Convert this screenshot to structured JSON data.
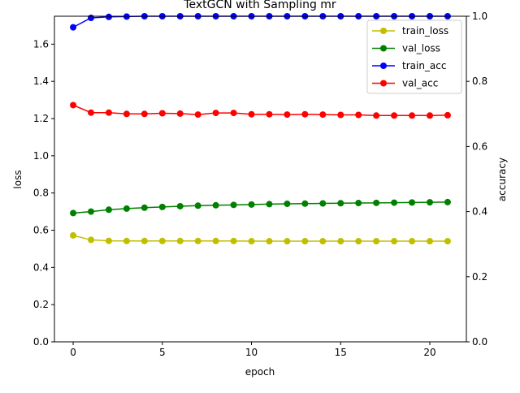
{
  "chart_data": {
    "type": "line",
    "title": "TextGCN with Sampling mr",
    "xlabel": "epoch",
    "ylabel_left": "loss",
    "ylabel_right": "accuracy",
    "xlim": [
      -1.05,
      22.05
    ],
    "ylim_left": [
      0,
      1.75
    ],
    "ylim_right": [
      0,
      1.0
    ],
    "x_ticks": [
      0,
      5,
      10,
      15,
      20
    ],
    "y_ticks_left": [
      "0.0",
      "0.2",
      "0.4",
      "0.6",
      "0.8",
      "1.0",
      "1.2",
      "1.4",
      "1.6"
    ],
    "y_ticks_right": [
      "0.0",
      "0.2",
      "0.4",
      "0.6",
      "0.8",
      "1.0"
    ],
    "grid": false,
    "legend_position": "top-right",
    "x": [
      0,
      1,
      2,
      3,
      4,
      5,
      6,
      7,
      8,
      9,
      10,
      11,
      12,
      13,
      14,
      15,
      16,
      17,
      18,
      19,
      20,
      21
    ],
    "series": [
      {
        "name": "train_loss",
        "axis": "left",
        "color": "#bfbf00",
        "values": [
          0.572,
          0.548,
          0.543,
          0.542,
          0.542,
          0.542,
          0.542,
          0.542,
          0.542,
          0.542,
          0.541,
          0.541,
          0.541,
          0.541,
          0.541,
          0.541,
          0.541,
          0.541,
          0.541,
          0.541,
          0.541,
          0.541
        ]
      },
      {
        "name": "val_loss",
        "axis": "left",
        "color": "#008000",
        "values": [
          0.692,
          0.7,
          0.71,
          0.716,
          0.721,
          0.725,
          0.729,
          0.732,
          0.734,
          0.736,
          0.738,
          0.74,
          0.742,
          0.743,
          0.744,
          0.745,
          0.746,
          0.747,
          0.748,
          0.749,
          0.75,
          0.751
        ]
      },
      {
        "name": "train_acc",
        "axis": "right",
        "color": "#0000ff",
        "values": [
          0.966,
          0.995,
          0.998,
          0.999,
          1.0,
          1.0,
          1.0,
          1.0,
          1.0,
          1.0,
          1.0,
          1.0,
          1.0,
          1.0,
          1.0,
          1.0,
          1.0,
          1.0,
          1.0,
          1.0,
          1.0,
          1.0
        ]
      },
      {
        "name": "val_acc",
        "axis": "right",
        "color": "#ff0000",
        "values": [
          0.727,
          0.704,
          0.704,
          0.7,
          0.7,
          0.702,
          0.701,
          0.698,
          0.703,
          0.703,
          0.699,
          0.699,
          0.698,
          0.699,
          0.698,
          0.697,
          0.697,
          0.695,
          0.695,
          0.695,
          0.695,
          0.696
        ]
      }
    ]
  }
}
